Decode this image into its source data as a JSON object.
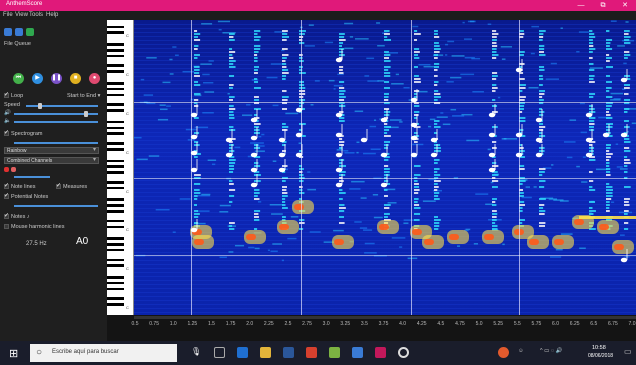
{
  "window": {
    "title": "AnthemScore",
    "controls": [
      "—",
      "⧉",
      "✕"
    ]
  },
  "menu": [
    "File",
    "View",
    "Tools",
    "Help"
  ],
  "sidebar": {
    "file_label": "File Queue",
    "loop_label": "Loop",
    "start_to_end": "Start to End",
    "speed_label": "Speed",
    "spectrogram_label": "Spectrogram",
    "colormap": "Rainbow",
    "channels": "Combined Channels",
    "note_lines_label": "Note lines",
    "measures_label": "Measures",
    "potential_notes_label": "Potential Notes",
    "notes_label": "Notes",
    "harmonic_lines_label": "Mouse harmonic lines",
    "frequency": "27.5 Hz",
    "note_name": "A0"
  },
  "piano_labels": [
    "C",
    "C",
    "C",
    "C",
    "C",
    "C",
    "C",
    "C"
  ],
  "timeline": [
    "0.5",
    "0.75",
    "1.0",
    "1.25",
    "1.5",
    "1.75",
    "2.0",
    "2.25",
    "2.5",
    "2.75",
    "3.0",
    "3.25",
    "3.5",
    "3.75",
    "4.0",
    "4.25",
    "4.5",
    "4.75",
    "5.0",
    "5.25",
    "5.5",
    "5.75",
    "6.0",
    "6.25",
    "6.5",
    "6.75",
    "7.0"
  ],
  "taskbar": {
    "search_placeholder": "Escribe aquí para buscar",
    "time": "10:58",
    "date": "08/06/2018"
  },
  "colors": {
    "title": "#e0197a",
    "spectrogram_bg": "#0d27b8"
  }
}
